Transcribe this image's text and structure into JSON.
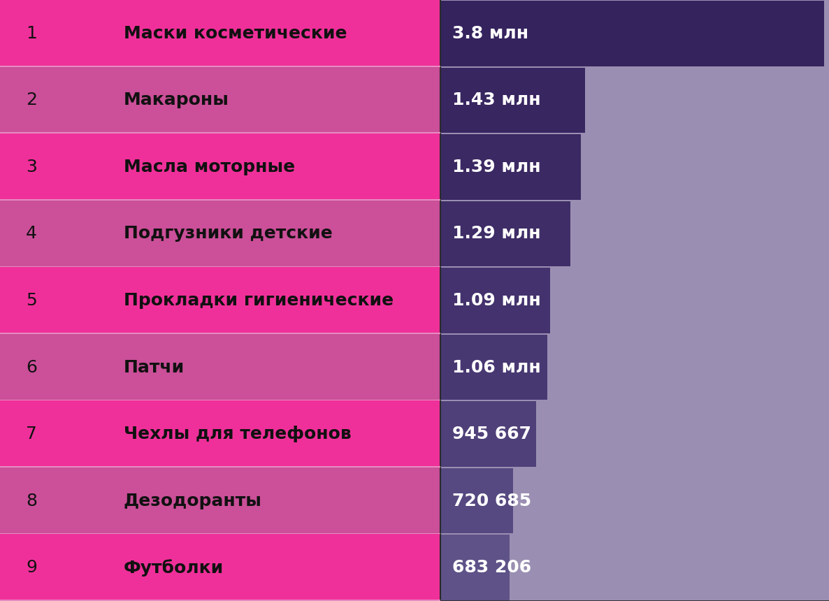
{
  "chart_data": {
    "type": "bar",
    "orientation": "horizontal",
    "ranks": [
      1,
      2,
      3,
      4,
      5,
      6,
      7,
      8,
      9
    ],
    "categories": [
      "Маски косметические",
      "Макароны",
      "Масла моторные",
      "Подгузники детские",
      "Прокладки гигиенические",
      "Патчи",
      "Чехлы для телефонов",
      "Дезодоранты",
      "Футболки"
    ],
    "values": [
      3800000,
      1430000,
      1390000,
      1290000,
      1090000,
      1060000,
      945667,
      720685,
      683206
    ],
    "value_labels": [
      "3.8 млн",
      "1.43 млн",
      "1.39 млн",
      "1.29 млн",
      "1.09 млн",
      "1.06 млн",
      "945 667",
      "720 685",
      "683 206"
    ],
    "colors": [
      "#35235E",
      "#382661",
      "#3B2963",
      "#3E2D67",
      "#43326D",
      "#483872",
      "#4F4079",
      "#564981",
      "#5E5288"
    ],
    "xlim": [
      0,
      3850000
    ],
    "xticks": [],
    "tick_labels": false,
    "grid": false,
    "data_labels": true
  }
}
